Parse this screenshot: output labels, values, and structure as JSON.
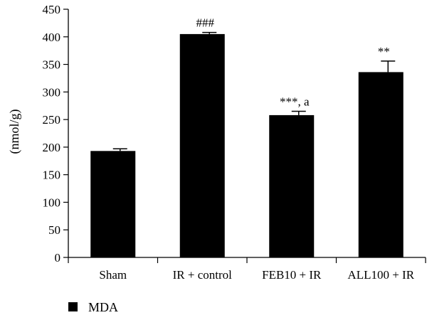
{
  "chart_data": {
    "type": "bar",
    "title": "",
    "xlabel": "",
    "ylabel": "(nmol/g)",
    "ylim": [
      0,
      450
    ],
    "yticks": [
      0,
      50,
      100,
      150,
      200,
      250,
      300,
      350,
      400,
      450
    ],
    "categories": [
      "Sham",
      "IR + control",
      "FEB10 + IR",
      "ALL100 + IR"
    ],
    "series": [
      {
        "name": "MDA",
        "color": "#000000",
        "values": [
          193,
          405,
          258,
          336
        ],
        "errors": [
          4,
          3,
          7,
          20
        ],
        "annotations": [
          "",
          "###",
          "***, a",
          "**"
        ]
      }
    ],
    "legend": {
      "position": "bottom-left"
    },
    "grid": false
  }
}
